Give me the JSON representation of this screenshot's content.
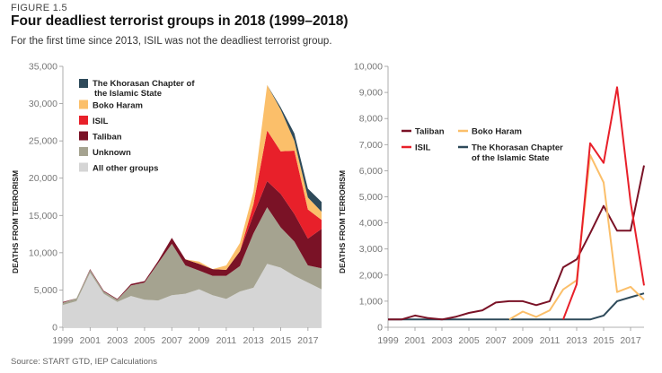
{
  "figure_label": "FIGURE 1.5",
  "title": "Four deadliest terrorist groups in 2018 (1999–2018)",
  "subtitle": "For the first time since 2013, ISIL was not the deadliest terrorist group.",
  "source": "Source: START GTD, IEP Calculations",
  "colors": {
    "khorasan": "#2e4a5a",
    "boko_haram": "#fbbf6a",
    "isil": "#e8202a",
    "taliban": "#7a1226",
    "unknown": "#a5a390",
    "other": "#d5d5d5",
    "axis": "#999999",
    "tick_text": "#777777"
  },
  "chart_data": [
    {
      "type": "area",
      "stacked": true,
      "title": "",
      "xlabel": "",
      "ylabel": "DEATHS FROM TERRORISM",
      "xlim": [
        1999,
        2018
      ],
      "ylim": [
        0,
        35000
      ],
      "yticks": [
        0,
        5000,
        10000,
        15000,
        20000,
        25000,
        30000,
        35000
      ],
      "ytick_labels": [
        "0",
        "5,000",
        "10,000",
        "15,000",
        "20,000",
        "25,000",
        "30,000",
        "35,000"
      ],
      "xticks": [
        1999,
        2001,
        2003,
        2005,
        2007,
        2009,
        2011,
        2013,
        2015,
        2017
      ],
      "legend_position": "top-left",
      "x": [
        1999,
        2000,
        2001,
        2002,
        2003,
        2004,
        2005,
        2006,
        2007,
        2008,
        2009,
        2010,
        2011,
        2012,
        2013,
        2014,
        2015,
        2016,
        2017,
        2018
      ],
      "series": [
        {
          "name": "All other groups",
          "color_key": "other",
          "values": [
            3000,
            3500,
            7300,
            4500,
            3400,
            4200,
            3700,
            3600,
            4300,
            4500,
            5100,
            4300,
            3800,
            4800,
            5300,
            8500,
            8000,
            6900,
            6000,
            5100
          ]
        },
        {
          "name": "Unknown",
          "color_key": "unknown",
          "values": [
            300,
            400,
            400,
            300,
            300,
            1400,
            2300,
            5000,
            6900,
            3800,
            2500,
            2600,
            3100,
            3400,
            7300,
            7600,
            5400,
            4600,
            2300,
            2800
          ]
        },
        {
          "name": "Taliban",
          "color_key": "taliban",
          "values": [
            100,
            0,
            100,
            100,
            100,
            200,
            200,
            300,
            800,
            800,
            900,
            900,
            800,
            2000,
            2500,
            3500,
            4500,
            3700,
            3600,
            5300
          ]
        },
        {
          "name": "ISIL",
          "color_key": "isil",
          "values": [
            0,
            0,
            0,
            0,
            0,
            0,
            0,
            0,
            0,
            0,
            0,
            0,
            0,
            0,
            1400,
            6800,
            5700,
            8500,
            3900,
            1200
          ]
        },
        {
          "name": "Boko Haram",
          "color_key": "boko_haram",
          "values": [
            0,
            0,
            0,
            0,
            0,
            0,
            0,
            0,
            0,
            0,
            300,
            0,
            600,
            1100,
            1700,
            6100,
            5600,
            1300,
            1600,
            1100
          ]
        },
        {
          "name": "The Khorasan Chapter of the Islamic State",
          "color_key": "khorasan",
          "values": [
            0,
            0,
            0,
            0,
            0,
            0,
            0,
            0,
            0,
            0,
            0,
            0,
            0,
            0,
            0,
            0,
            300,
            1000,
            1200,
            1300
          ]
        }
      ]
    },
    {
      "type": "line",
      "title": "",
      "xlabel": "",
      "ylabel": "DEATHS FROM TERRORISM",
      "xlim": [
        1999,
        2018
      ],
      "ylim": [
        0,
        10000
      ],
      "yticks": [
        0,
        1000,
        2000,
        3000,
        4000,
        5000,
        6000,
        7000,
        8000,
        9000,
        10000
      ],
      "ytick_labels": [
        "0",
        "1,000",
        "2,000",
        "3,000",
        "4,000",
        "5,000",
        "6,000",
        "7,000",
        "8,000",
        "9,000",
        "10,000"
      ],
      "xticks": [
        1999,
        2001,
        2003,
        2005,
        2007,
        2009,
        2011,
        2013,
        2015,
        2017
      ],
      "legend_position": "top-left",
      "x": [
        1999,
        2000,
        2001,
        2002,
        2003,
        2004,
        2005,
        2006,
        2007,
        2008,
        2009,
        2010,
        2011,
        2012,
        2013,
        2014,
        2015,
        2016,
        2017,
        2018
      ],
      "series": [
        {
          "name": "Taliban",
          "color_key": "taliban",
          "values": [
            300,
            300,
            450,
            350,
            300,
            400,
            550,
            650,
            950,
            1000,
            1000,
            850,
            1000,
            2300,
            2600,
            3600,
            4650,
            3700,
            3700,
            6200
          ]
        },
        {
          "name": "Boko Haram",
          "color_key": "boko_haram",
          "values": [
            null,
            null,
            null,
            null,
            null,
            null,
            null,
            null,
            null,
            300,
            600,
            400,
            650,
            1450,
            1800,
            6600,
            5550,
            1350,
            1550,
            1050
          ]
        },
        {
          "name": "ISIL",
          "color_key": "isil",
          "values": [
            null,
            null,
            null,
            null,
            null,
            null,
            null,
            null,
            null,
            null,
            null,
            null,
            null,
            300,
            1650,
            7050,
            6300,
            9200,
            4800,
            1600
          ]
        },
        {
          "name": "The Khorasan Chapter of the Islamic State",
          "color_key": "khorasan",
          "values": [
            300,
            300,
            300,
            300,
            300,
            300,
            300,
            300,
            300,
            300,
            300,
            300,
            300,
            300,
            300,
            300,
            450,
            1000,
            1150,
            1300
          ]
        }
      ]
    }
  ]
}
